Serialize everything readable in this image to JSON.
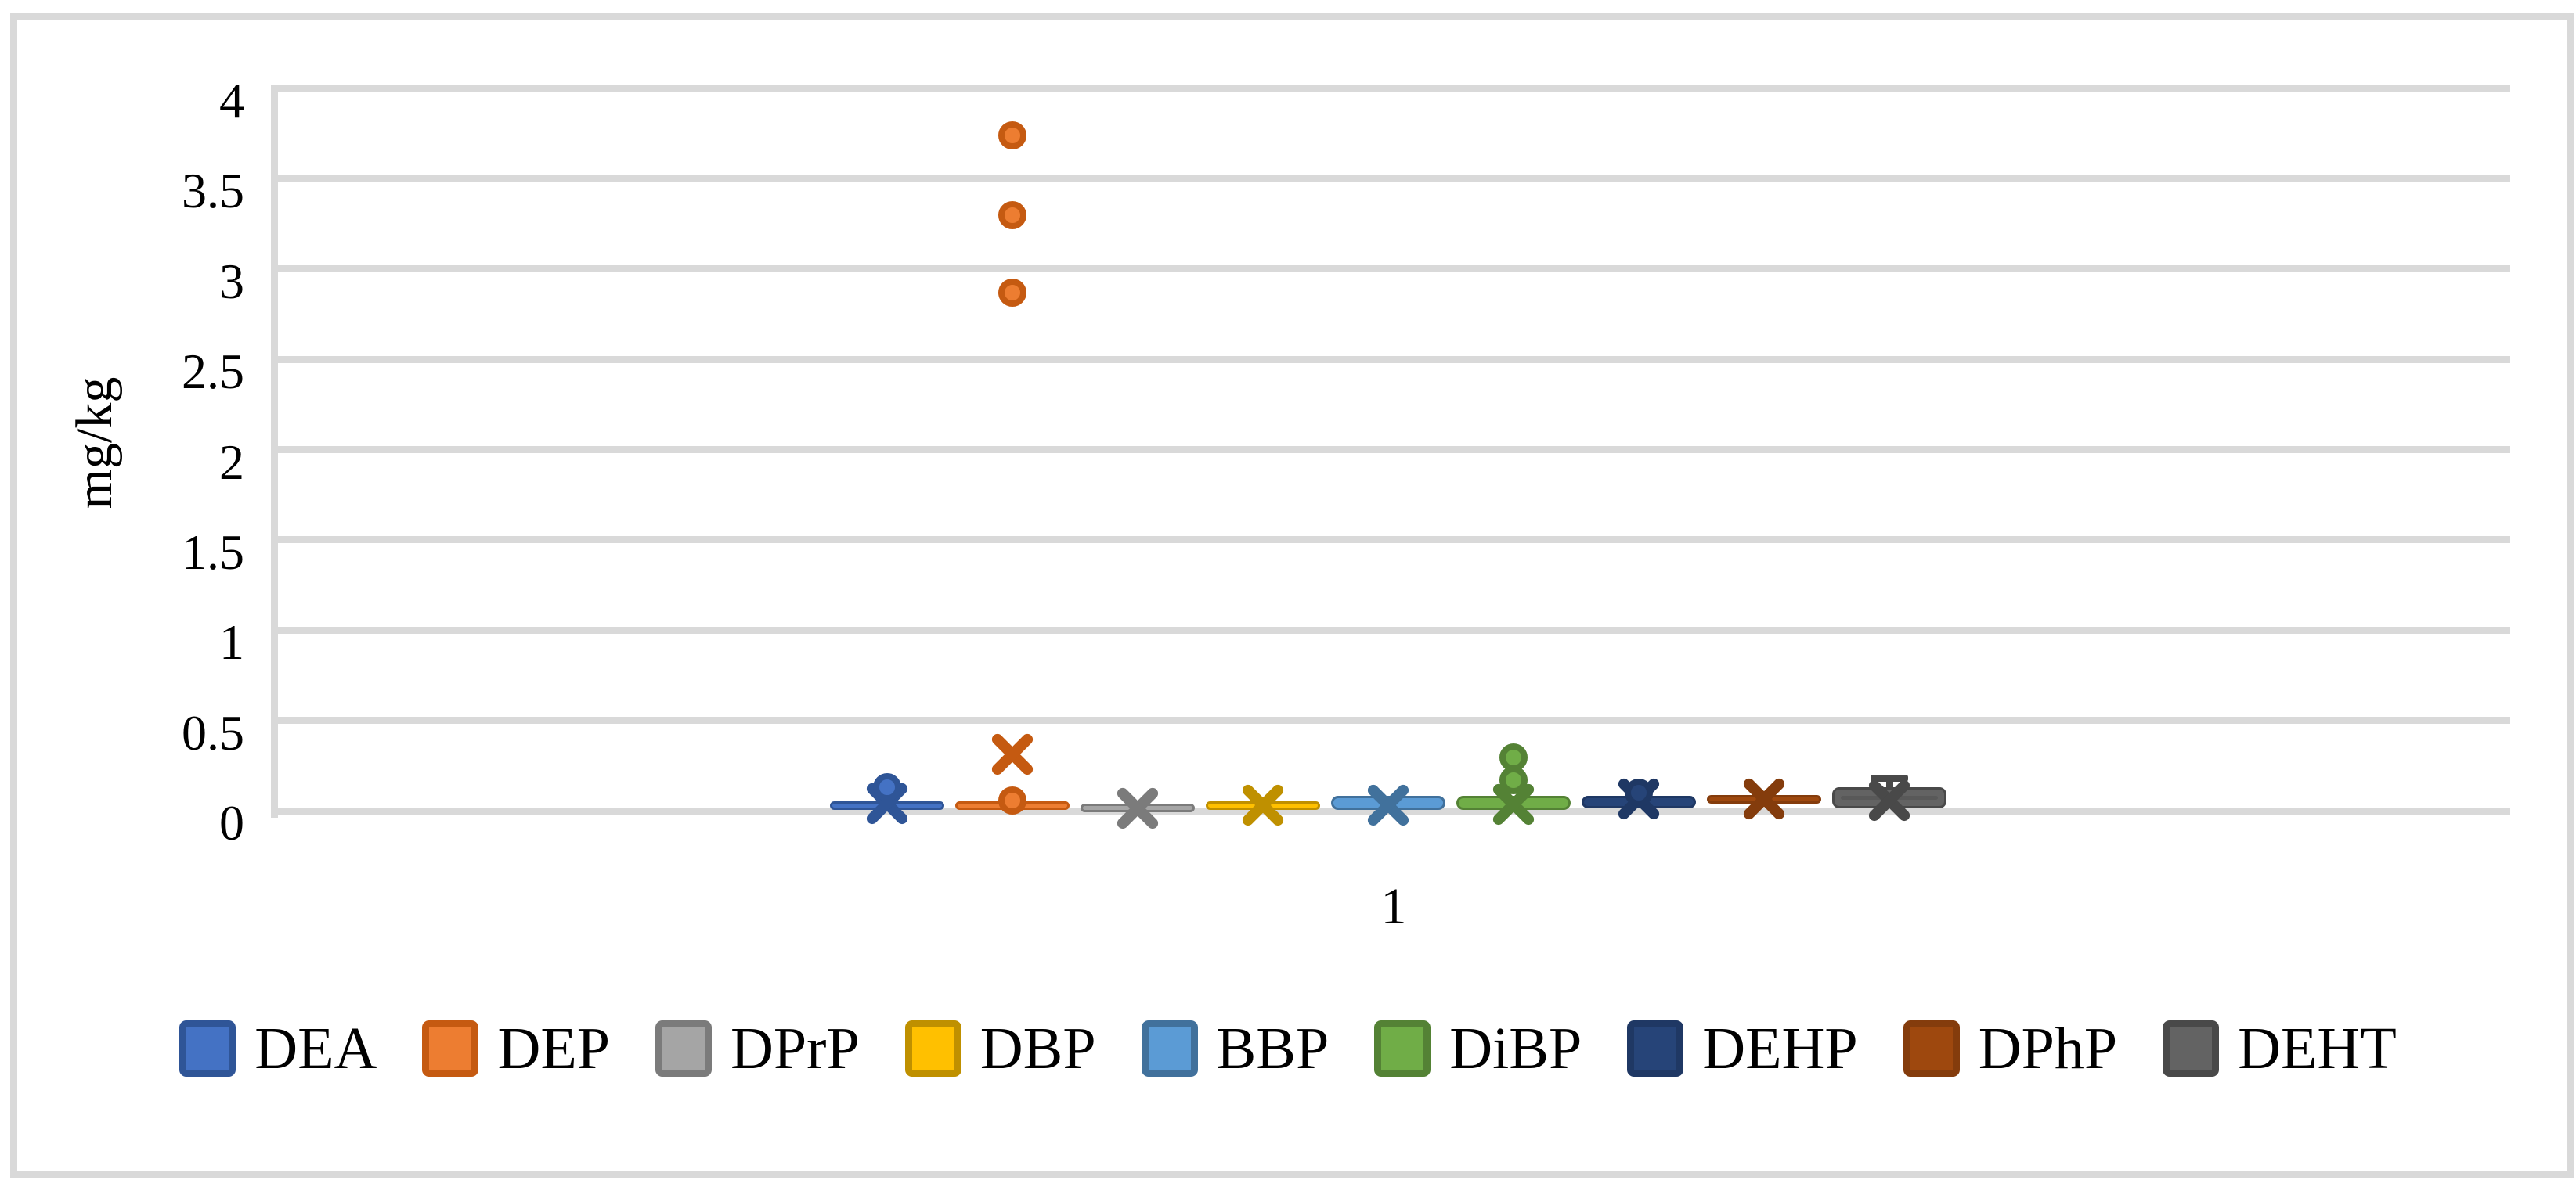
{
  "chart_data": {
    "type": "box",
    "title": "",
    "ylabel": "mg/kg",
    "categories": [
      "1"
    ],
    "ylim": [
      0,
      4
    ],
    "grid": true,
    "legend_position": "bottom",
    "y_ticks": [
      {
        "label": "0",
        "value": 0
      },
      {
        "label": "0.5",
        "value": 0.5
      },
      {
        "label": "1",
        "value": 1
      },
      {
        "label": "1.5",
        "value": 1.5
      },
      {
        "label": "2",
        "value": 2
      },
      {
        "label": "2.5",
        "value": 2.5
      },
      {
        "label": "3",
        "value": 3
      },
      {
        "label": "3.5",
        "value": 3.5
      },
      {
        "label": "4",
        "value": 4
      }
    ],
    "series": [
      {
        "name": "DEA",
        "color": "#4472C4",
        "border_color": "#2F5597",
        "box_low": 0.005,
        "box_high": 0.05,
        "median": null,
        "mean": 0.04,
        "whisker_high": null,
        "outliers": [
          0.13
        ]
      },
      {
        "name": "DEP",
        "color": "#ED7D31",
        "border_color": "#C55A11",
        "box_low": 0.005,
        "box_high": 0.05,
        "median": null,
        "mean": 0.31,
        "whisker_high": null,
        "outliers": [
          0.055,
          2.87,
          3.3,
          3.74
        ]
      },
      {
        "name": "DPrP",
        "color": "#A5A5A5",
        "border_color": "#7B7B7B",
        "box_low": 0.0,
        "box_high": 0.04,
        "median": null,
        "mean": 0.015,
        "whisker_high": null,
        "outliers": []
      },
      {
        "name": "DBP",
        "color": "#FFC000",
        "border_color": "#BF9000",
        "box_low": 0.005,
        "box_high": 0.05,
        "median": null,
        "mean": 0.03,
        "whisker_high": null,
        "outliers": []
      },
      {
        "name": "BBP",
        "color": "#5B9BD5",
        "border_color": "#41719C",
        "box_low": 0.005,
        "box_high": 0.083,
        "median": 0.05,
        "mean": 0.03,
        "whisker_high": null,
        "outliers": []
      },
      {
        "name": "DiBP",
        "color": "#70AD47",
        "border_color": "#548235",
        "box_low": 0.005,
        "box_high": 0.083,
        "median": 0.045,
        "mean": 0.035,
        "whisker_high": null,
        "outliers": [
          0.17,
          0.295
        ]
      },
      {
        "name": "DEHP",
        "color": "#264478",
        "border_color": "#1F3864",
        "box_low": 0.013,
        "box_high": 0.083,
        "median": 0.05,
        "mean": 0.065,
        "whisker_high": null,
        "outliers": [
          0.1
        ]
      },
      {
        "name": "DPhP",
        "color": "#9E480E",
        "border_color": "#843C0C",
        "box_low": 0.048,
        "box_high": 0.085,
        "median": null,
        "mean": 0.065,
        "whisker_high": null,
        "outliers": []
      },
      {
        "name": "DEHT",
        "color": "#636363",
        "border_color": "#494949",
        "box_low": 0.013,
        "box_high": 0.128,
        "median": 0.085,
        "mean": 0.055,
        "whisker_high": 0.18,
        "outliers": []
      }
    ]
  },
  "colors": {
    "background": "#FFFFFF",
    "frame_border": "#D9D9D9",
    "gridline": "#D9D9D9",
    "axis_line": "#D9D9D9",
    "text": "#000000"
  }
}
